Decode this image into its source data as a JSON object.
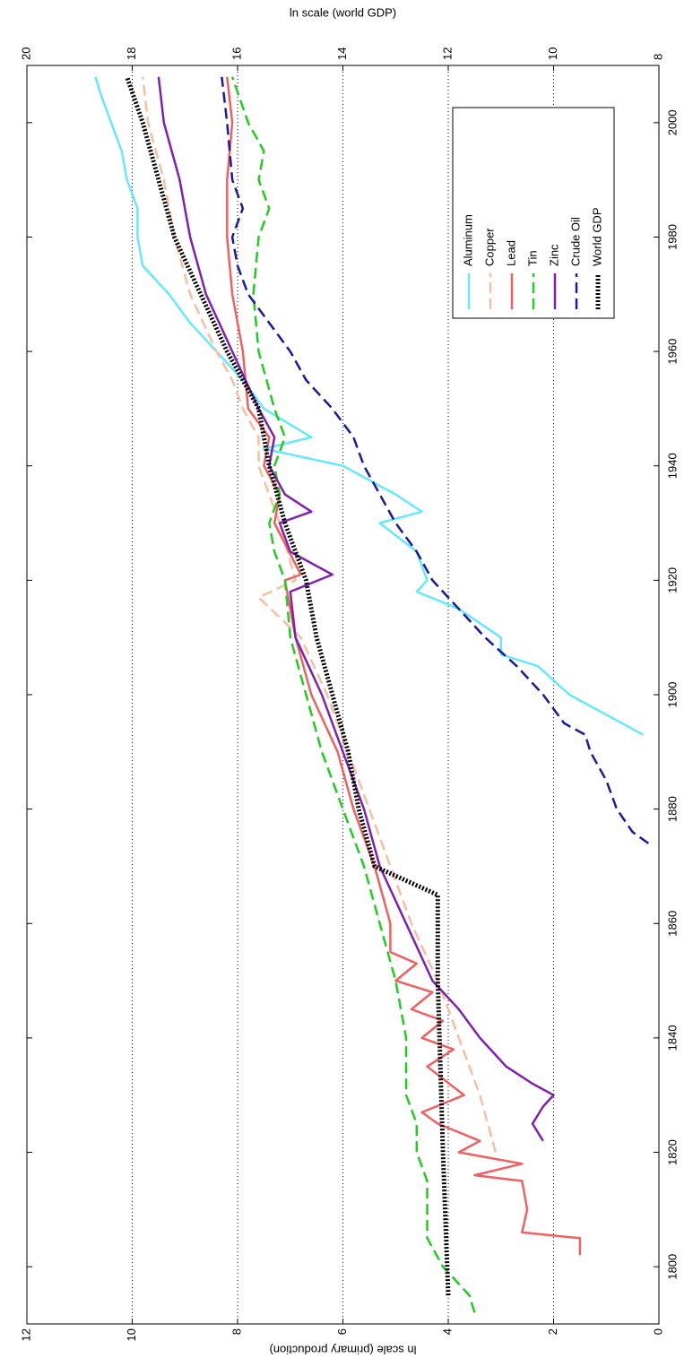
{
  "chart_data": {
    "type": "line",
    "xlim": [
      1790,
      2010
    ],
    "xticks": [
      1800,
      1820,
      1840,
      1860,
      1880,
      1900,
      1920,
      1940,
      1960,
      1980,
      2000
    ],
    "ylim": [
      0,
      12
    ],
    "yticks": [
      0,
      2,
      4,
      6,
      8,
      10,
      12
    ],
    "y2lim": [
      8,
      20
    ],
    "y2ticks": [
      8,
      10,
      12,
      14,
      16,
      18,
      20
    ],
    "ylabel": "ln scale (primary production)",
    "y2label": "ln scale (world GDP)",
    "grid": true,
    "legend": "lower right",
    "rotation": -90,
    "series": [
      {
        "name": "Aluminum",
        "color": "#66e8ff",
        "linestyle": "solid",
        "x": [
          1893,
          1900,
          1905,
          1907,
          1910,
          1915,
          1918,
          1920,
          1925,
          1930,
          1932,
          1935,
          1940,
          1943,
          1945,
          1950,
          1955,
          1960,
          1965,
          1970,
          1975,
          1980,
          1985,
          1990,
          1995,
          2000,
          2005,
          2008
        ],
        "values": [
          0.3,
          1.7,
          2.3,
          3.0,
          3.0,
          3.8,
          4.6,
          4.4,
          4.6,
          5.3,
          4.5,
          5.0,
          6.0,
          7.5,
          6.6,
          7.5,
          7.9,
          8.4,
          8.9,
          9.3,
          9.8,
          9.9,
          9.9,
          10.1,
          10.2,
          10.4,
          10.6,
          10.7
        ]
      },
      {
        "name": "Copper",
        "color": "#f5bfa0",
        "linestyle": "dashed",
        "x": [
          1820,
          1830,
          1840,
          1850,
          1860,
          1870,
          1880,
          1890,
          1900,
          1910,
          1917,
          1920,
          1930,
          1940,
          1945,
          1950,
          1955,
          1960,
          1970,
          1980,
          1990,
          2000,
          2008
        ],
        "values": [
          3.1,
          3.4,
          3.8,
          4.2,
          4.7,
          5.1,
          5.5,
          5.9,
          6.3,
          6.8,
          7.6,
          6.9,
          7.2,
          7.6,
          7.6,
          7.9,
          8.1,
          8.4,
          8.9,
          9.2,
          9.4,
          9.7,
          9.8
        ]
      },
      {
        "name": "Lead",
        "color": "#f06060",
        "linestyle": "solid",
        "x": [
          1802,
          1805,
          1806,
          1810,
          1815,
          1816,
          1818,
          1820,
          1822,
          1825,
          1827,
          1830,
          1835,
          1838,
          1840,
          1843,
          1845,
          1848,
          1850,
          1853,
          1855,
          1860,
          1870,
          1880,
          1890,
          1900,
          1910,
          1920,
          1921,
          1930,
          1935,
          1940,
          1945,
          1950,
          1960,
          1970,
          1980,
          1990,
          2000,
          2008
        ],
        "values": [
          1.5,
          1.5,
          2.6,
          2.5,
          2.6,
          3.5,
          2.6,
          3.8,
          3.4,
          4.2,
          4.5,
          3.7,
          4.4,
          3.9,
          4.5,
          4.1,
          4.7,
          4.3,
          5.0,
          4.6,
          5.1,
          5.1,
          5.4,
          5.8,
          6.1,
          6.6,
          6.9,
          7.1,
          6.8,
          7.3,
          7.2,
          7.5,
          7.4,
          7.8,
          7.9,
          8.1,
          8.2,
          8.2,
          8.1,
          8.2
        ]
      },
      {
        "name": "Tin",
        "color": "#22cc22",
        "linestyle": "dashed",
        "x": [
          1792,
          1795,
          1798,
          1800,
          1805,
          1810,
          1815,
          1820,
          1825,
          1830,
          1840,
          1850,
          1860,
          1870,
          1880,
          1890,
          1900,
          1910,
          1920,
          1925,
          1930,
          1935,
          1940,
          1945,
          1950,
          1960,
          1970,
          1980,
          1985,
          1990,
          1995,
          2000,
          2008
        ],
        "values": [
          3.5,
          3.6,
          3.9,
          4.1,
          4.4,
          4.4,
          4.4,
          4.6,
          4.6,
          4.8,
          4.8,
          5.0,
          5.3,
          5.6,
          6.0,
          6.4,
          6.7,
          7.0,
          7.1,
          7.3,
          7.4,
          7.2,
          7.3,
          7.1,
          7.3,
          7.6,
          7.7,
          7.6,
          7.4,
          7.6,
          7.5,
          7.8,
          8.1
        ]
      },
      {
        "name": "Zinc",
        "color": "#8020b0",
        "linestyle": "solid",
        "x": [
          1822,
          1825,
          1828,
          1830,
          1832,
          1835,
          1840,
          1845,
          1850,
          1860,
          1870,
          1880,
          1890,
          1900,
          1910,
          1918,
          1921,
          1925,
          1930,
          1932,
          1935,
          1940,
          1945,
          1950,
          1960,
          1970,
          1980,
          1990,
          2000,
          2008
        ],
        "values": [
          2.2,
          2.4,
          2.2,
          2.0,
          2.4,
          2.9,
          3.4,
          3.8,
          4.3,
          4.8,
          5.3,
          5.6,
          6.0,
          6.4,
          6.9,
          7.0,
          6.2,
          7.0,
          7.2,
          6.6,
          7.1,
          7.4,
          7.3,
          7.6,
          8.1,
          8.6,
          8.9,
          9.1,
          9.4,
          9.5
        ]
      },
      {
        "name": "Crude Oil",
        "color": "#1a1aa0",
        "linestyle": "dashed",
        "x": [
          1874,
          1876,
          1880,
          1885,
          1890,
          1893,
          1895,
          1900,
          1905,
          1910,
          1915,
          1920,
          1925,
          1930,
          1935,
          1940,
          1945,
          1950,
          1955,
          1960,
          1965,
          1970,
          1975,
          1980,
          1985,
          1990,
          2000,
          2008
        ],
        "values": [
          0.2,
          0.5,
          0.8,
          1.0,
          1.3,
          1.4,
          1.8,
          2.2,
          2.7,
          3.3,
          3.8,
          4.3,
          4.6,
          5.0,
          5.3,
          5.6,
          5.8,
          6.2,
          6.7,
          7.0,
          7.4,
          7.8,
          8.0,
          8.1,
          7.9,
          8.1,
          8.2,
          8.3
        ]
      },
      {
        "name": "World GDP",
        "color": "#000000",
        "linestyle": "dotted",
        "axis": "y2",
        "x": [
          1795,
          1820,
          1850,
          1865,
          1870,
          1880,
          1890,
          1900,
          1910,
          1920,
          1930,
          1940,
          1950,
          1960,
          1970,
          1980,
          1990,
          2000,
          2008
        ],
        "values": [
          12.0,
          12.1,
          12.2,
          12.2,
          13.4,
          13.7,
          13.9,
          14.2,
          14.5,
          14.7,
          15.1,
          15.4,
          15.6,
          16.2,
          16.7,
          17.2,
          17.5,
          17.8,
          18.1
        ]
      }
    ]
  }
}
